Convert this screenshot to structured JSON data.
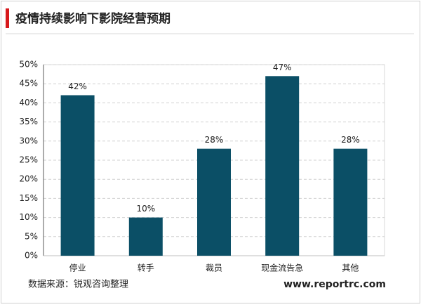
{
  "chart_data": {
    "type": "bar",
    "title": "疫情持续影响下影院经营预期",
    "categories": [
      "停业",
      "转手",
      "裁员",
      "现金流告急",
      "其他"
    ],
    "values": [
      42,
      10,
      28,
      47,
      28
    ],
    "value_labels": [
      "42%",
      "10%",
      "28%",
      "47%",
      "28%"
    ],
    "color": "#0b4f66",
    "ylim": [
      0,
      50
    ],
    "yticks": [
      {
        "value": 0,
        "label": "0%"
      },
      {
        "value": 5,
        "label": "5%"
      },
      {
        "value": 10,
        "label": "10%"
      },
      {
        "value": 15,
        "label": "15%"
      },
      {
        "value": 20,
        "label": "20%"
      },
      {
        "value": 25,
        "label": "25%"
      },
      {
        "value": 30,
        "label": "30%"
      },
      {
        "value": 35,
        "label": "35%"
      },
      {
        "value": 40,
        "label": "40%"
      },
      {
        "value": 45,
        "label": "45%"
      },
      {
        "value": 50,
        "label": "50%"
      }
    ],
    "grid": true,
    "source": "数据来源：锐观咨询整理",
    "website": "www.reportrc.com"
  }
}
